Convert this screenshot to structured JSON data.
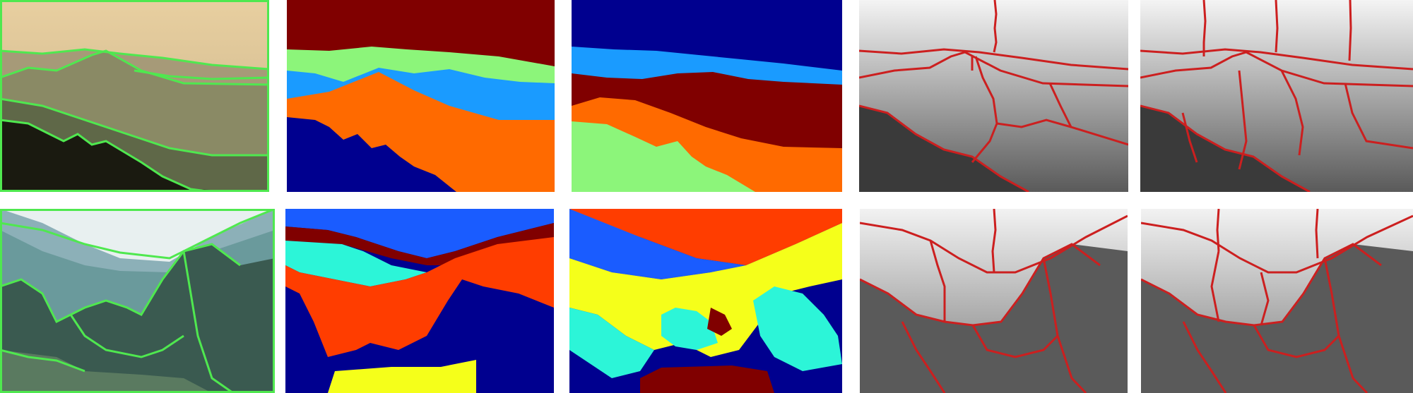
{
  "figure": {
    "rows": [
      {
        "panels": [
          "original-with-boundaries",
          "segmentation-label-map-a",
          "segmentation-label-map-b",
          "grayscale-superpixel-boundaries-a",
          "grayscale-superpixel-boundaries-b"
        ]
      },
      {
        "panels": [
          "original-with-boundaries",
          "segmentation-label-map-a",
          "segmentation-label-map-b",
          "grayscale-superpixel-boundaries-a",
          "grayscale-superpixel-boundaries-b"
        ]
      }
    ]
  },
  "colors": {
    "boundary_green": "#4fe84f",
    "boundary_red": "#cc1f1f",
    "label_dark_red": "#800000",
    "label_light_green": "#8cf57a",
    "label_sky_blue": "#1a9bff",
    "label_orange": "#ff6a00",
    "label_navy": "#00008f",
    "label_blue": "#1a5cff",
    "label_red_orange": "#ff3d00",
    "label_cyan": "#2cf5d8",
    "label_yellow": "#f5ff1a"
  }
}
